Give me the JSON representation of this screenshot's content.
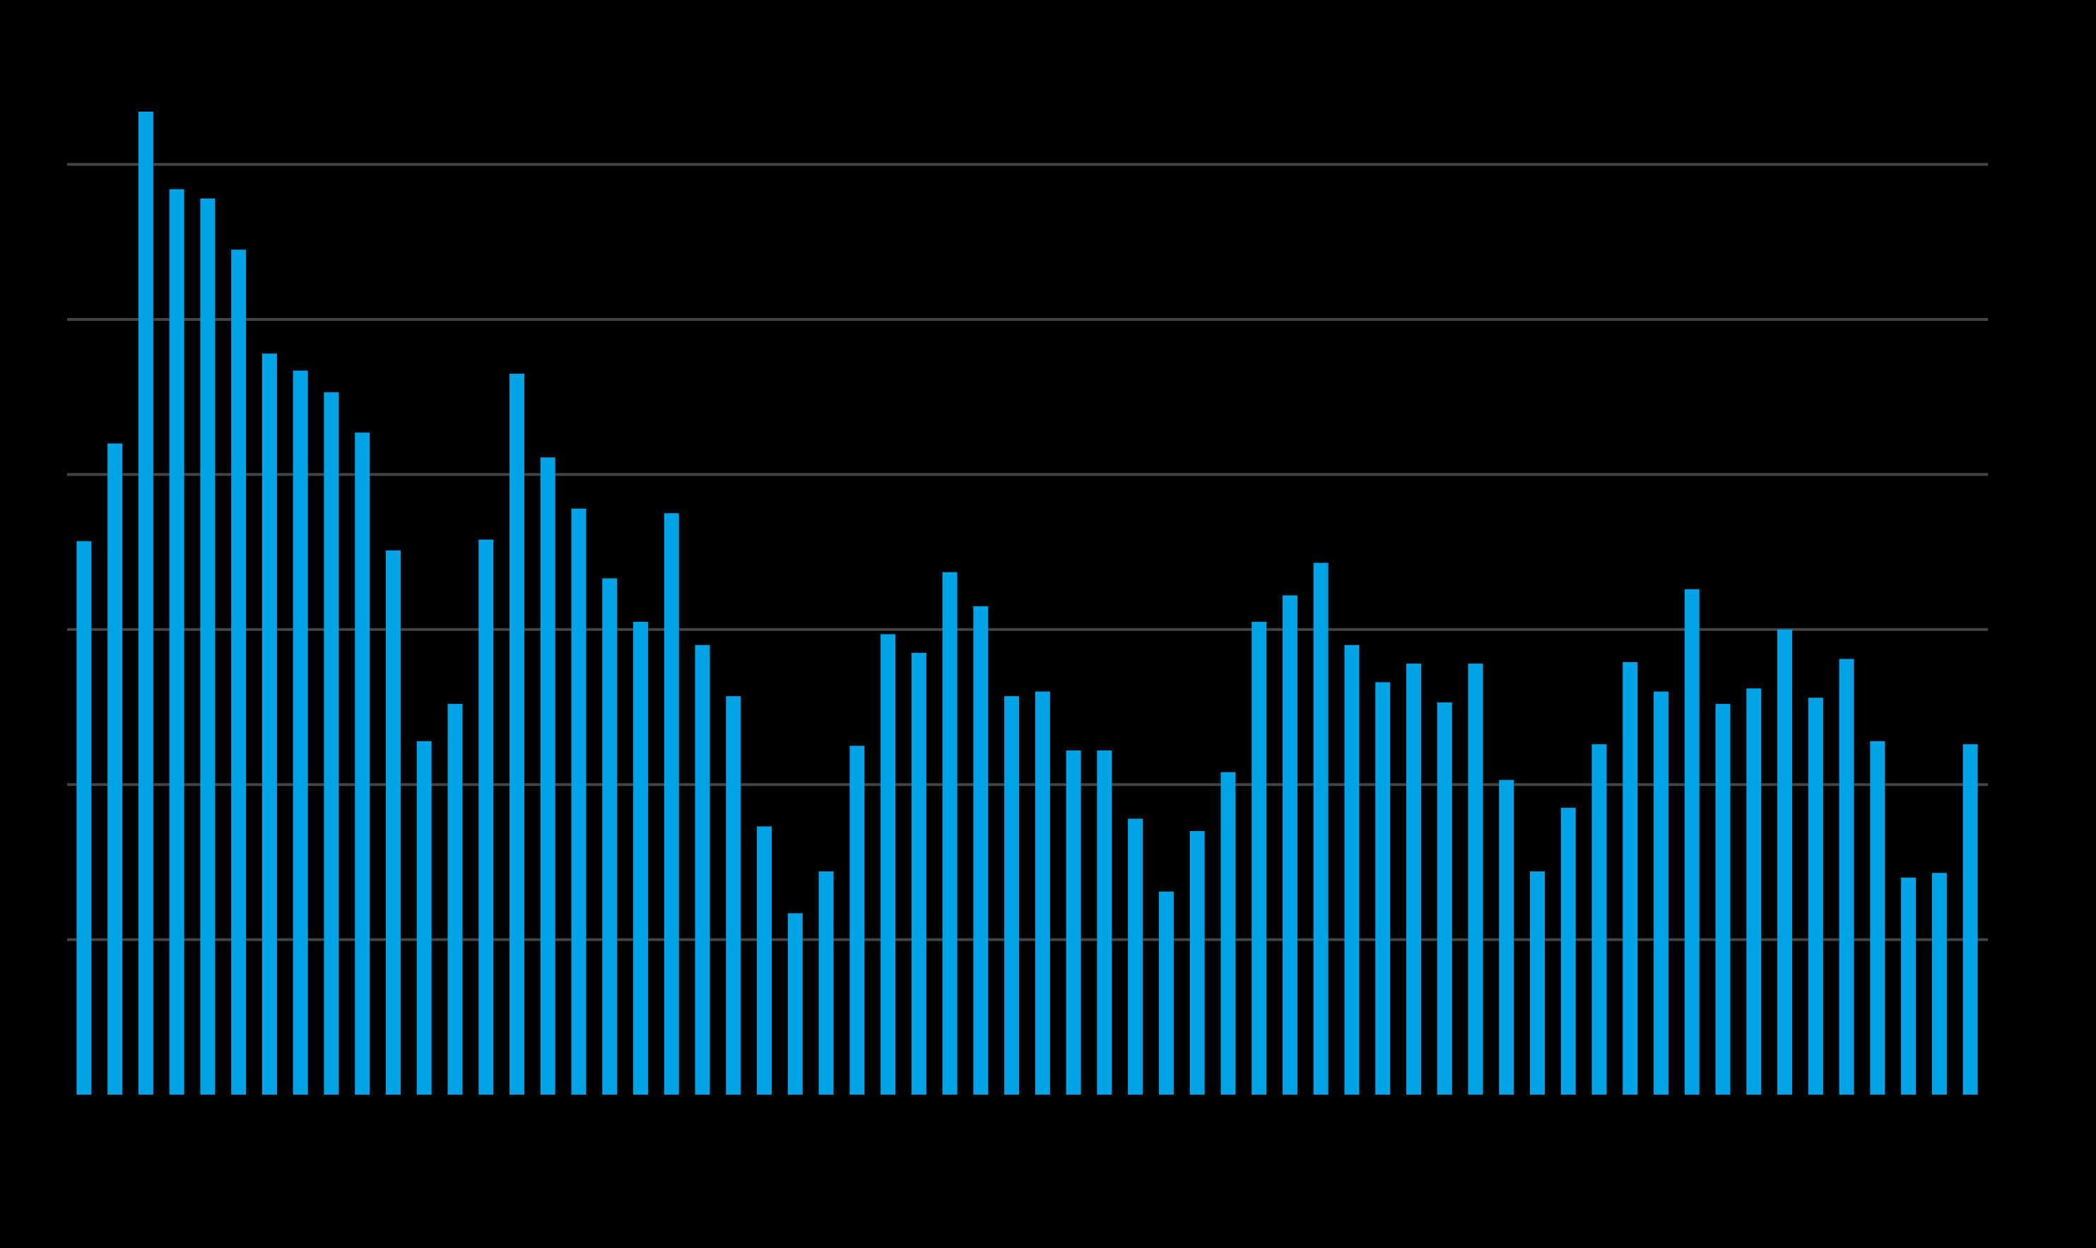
{
  "chart_data": {
    "type": "bar",
    "color": "#00a3e6",
    "grid": true,
    "ylim": [
      0,
      7
    ],
    "yticks": [
      1,
      2,
      3,
      4,
      5,
      6
    ],
    "values": [
      3.57,
      4.2,
      6.34,
      5.84,
      5.78,
      5.45,
      4.78,
      4.67,
      4.53,
      4.27,
      3.51,
      2.28,
      2.52,
      3.58,
      4.65,
      4.11,
      3.78,
      3.33,
      3.05,
      3.75,
      2.9,
      2.57,
      1.73,
      1.17,
      1.44,
      2.25,
      2.97,
      2.85,
      3.37,
      3.15,
      2.57,
      2.6,
      2.22,
      2.22,
      1.78,
      1.31,
      1.7,
      2.08,
      3.05,
      3.22,
      3.43,
      2.9,
      2.66,
      2.78,
      2.53,
      2.78,
      2.03,
      1.44,
      1.85,
      2.26,
      2.79,
      2.6,
      3.26,
      2.52,
      2.62,
      3.0,
      2.56,
      2.81,
      2.28,
      1.4,
      1.43,
      2.26
    ]
  }
}
